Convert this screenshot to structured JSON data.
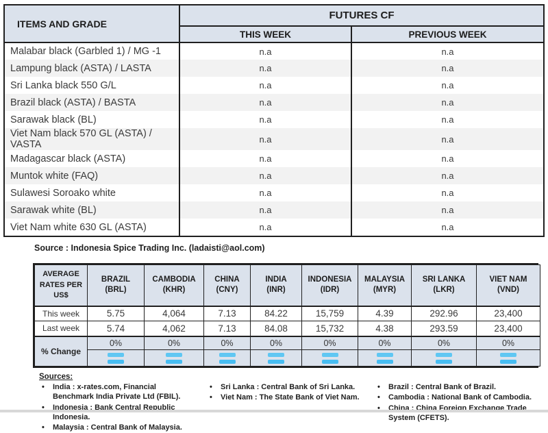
{
  "colors": {
    "header_bg": "#dbe2ec",
    "alt_row_bg": "#f2f2f2",
    "border": "#1f1f1f",
    "icon_blue": "#47bdf2",
    "bottom_strip": "#d8d8d8"
  },
  "futures_table": {
    "items_header": "ITEMS AND GRADE",
    "group_header": "FUTURES CF",
    "week_headers": {
      "this_week": "THIS WEEK",
      "previous_week": "PREVIOUS WEEK"
    },
    "rows": [
      {
        "item": "Malabar black (Garbled 1) / MG -1",
        "this_week": "n.a",
        "previous_week": "n.a"
      },
      {
        "item": "Lampung black (ASTA) / LASTA",
        "this_week": "n.a",
        "previous_week": "n.a"
      },
      {
        "item": "Sri Lanka black 550 G/L",
        "this_week": "n.a",
        "previous_week": "n.a"
      },
      {
        "item": "Brazil black (ASTA) / BASTA",
        "this_week": "n.a",
        "previous_week": "n.a"
      },
      {
        "item": "Sarawak black (BL)",
        "this_week": "n.a",
        "previous_week": "n.a"
      },
      {
        "item": "Viet Nam black 570 GL (ASTA) / VASTA",
        "this_week": "n.a",
        "previous_week": "n.a"
      },
      {
        "item": "Madagascar black (ASTA)",
        "this_week": "n.a",
        "previous_week": "n.a"
      },
      {
        "item": "Muntok white (FAQ)",
        "this_week": "n.a",
        "previous_week": "n.a"
      },
      {
        "item": "Sulawesi Soroako white",
        "this_week": "n.a",
        "previous_week": "n.a"
      },
      {
        "item": "Sarawak  white (BL)",
        "this_week": "n.a",
        "previous_week": "n.a"
      },
      {
        "item": "Viet Nam white 630 GL (ASTA)",
        "this_week": "n.a",
        "previous_week": "n.a"
      }
    ]
  },
  "source_line": "Source : Indonesia Spice Trading Inc. (ladaisti@aol.com)",
  "rates_table": {
    "corner_label": "AVERAGE RATES PER US$",
    "row_labels": {
      "this_week": "This week",
      "last_week": "Last week",
      "pct_change": "% Change"
    },
    "columns": [
      {
        "country": "BRAZIL",
        "code": "(BRL)",
        "this_week": "5.75",
        "last_week": "5.74",
        "pct_change": "0%"
      },
      {
        "country": "CAMBODIA",
        "code": "(KHR)",
        "this_week": "4,064",
        "last_week": "4,062",
        "pct_change": "0%"
      },
      {
        "country": "CHINA",
        "code": "(CNY)",
        "this_week": "7.13",
        "last_week": "7.13",
        "pct_change": "0%"
      },
      {
        "country": "INDIA",
        "code": "(INR)",
        "this_week": "84.22",
        "last_week": "84.08",
        "pct_change": "0%"
      },
      {
        "country": "INDONESIA",
        "code": "(IDR)",
        "this_week": "15,759",
        "last_week": "15,732",
        "pct_change": "0%"
      },
      {
        "country": "MALAYSIA",
        "code": "(MYR)",
        "this_week": "4.39",
        "last_week": "4.38",
        "pct_change": "0%"
      },
      {
        "country": "SRI LANKA",
        "code": "(LKR)",
        "this_week": "292.96",
        "last_week": "293.59",
        "pct_change": "0%"
      },
      {
        "country": "VIET NAM",
        "code": "(VND)",
        "this_week": "23,400",
        "last_week": "23,400",
        "pct_change": "0%"
      }
    ]
  },
  "sources": {
    "heading": "Sources:",
    "col1": [
      "India : x-rates.com, Financial Benchmark India Private Ltd (FBIL).",
      "Indonesia : Bank Central Republic Indonesia.",
      "Malaysia : Central Bank of Malaysia."
    ],
    "col2": [
      "Sri Lanka : Central Bank of Sri Lanka.",
      "Viet Nam : The State Bank of Viet Nam."
    ],
    "col3": [
      "Brazil :  Central Bank of Brazil.",
      "Cambodia : National Bank of Cambodia.",
      "China : China Foreign Exchange Trade System (CFETS)."
    ]
  }
}
